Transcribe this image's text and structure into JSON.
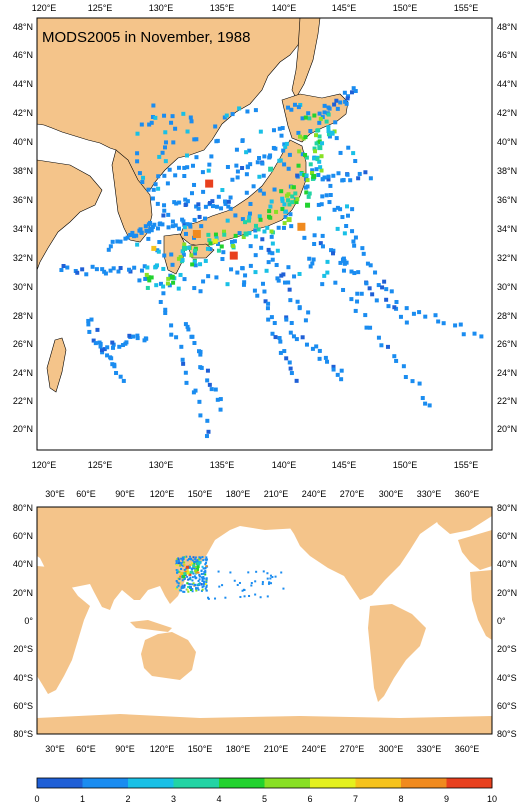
{
  "title": "MODS2005 in November, 1988",
  "colors": {
    "land": "#f4c48a",
    "ocean": "#ffffff",
    "scale": [
      "#1f5fd6",
      "#1a8cf0",
      "#19c0e6",
      "#22d4a4",
      "#22d22e",
      "#88e024",
      "#e4f01e",
      "#f5c21c",
      "#f08a1e",
      "#e8401e"
    ]
  },
  "regional_map": {
    "lon_range": [
      120,
      157
    ],
    "lat_range": [
      19,
      49
    ],
    "lon_ticks": [
      "120°E",
      "125°E",
      "130°E",
      "135°E",
      "140°E",
      "145°E",
      "150°E",
      "155°E"
    ],
    "lat_ticks": [
      "20°N",
      "22°N",
      "24°N",
      "26°N",
      "28°N",
      "30°N",
      "32°N",
      "34°N",
      "36°N",
      "38°N",
      "40°N",
      "42°N",
      "44°N",
      "46°N",
      "48°N"
    ]
  },
  "global_map": {
    "lon_range": [
      15,
      375
    ],
    "lat_range": [
      -80,
      80
    ],
    "lon_ticks": [
      "30°E",
      "60°E",
      "90°E",
      "120°E",
      "150°E",
      "180°E",
      "210°E",
      "240°E",
      "270°E",
      "300°E",
      "330°E",
      "360°E"
    ],
    "lat_ticks": [
      "80°S",
      "60°S",
      "40°S",
      "20°S",
      "0°",
      "20°N",
      "40°N",
      "60°N",
      "80°N"
    ]
  },
  "colorbar": {
    "labels": [
      "0",
      "1",
      "2",
      "3",
      "4",
      "5",
      "6",
      "7",
      "8",
      "9",
      "10"
    ]
  },
  "observations": [
    {
      "lon": 141.5,
      "lat": 34.5,
      "v": 9
    },
    {
      "lon": 136,
      "lat": 32.5,
      "v": 10
    },
    {
      "lon": 134,
      "lat": 37.5,
      "v": 10
    },
    {
      "lon": 133,
      "lat": 34,
      "v": 9
    },
    {
      "lon": 129.5,
      "lat": 33,
      "v": 8
    },
    {
      "lon": 134.5,
      "lat": 33.5,
      "v": 7
    },
    {
      "lon": 142.5,
      "lat": 38,
      "v": 5
    },
    {
      "lon": 143,
      "lat": 40,
      "v": 4
    },
    {
      "lon": 142,
      "lat": 36,
      "v": 5
    },
    {
      "lon": 140.5,
      "lat": 35,
      "v": 6
    },
    {
      "lon": 131,
      "lat": 31,
      "v": 5
    },
    {
      "lon": 139,
      "lat": 38.5,
      "v": 4
    },
    {
      "lon": 137,
      "lat": 34,
      "v": 4
    },
    {
      "lon": 144,
      "lat": 41,
      "v": 3
    },
    {
      "lon": 132,
      "lat": 33,
      "v": 4
    }
  ]
}
